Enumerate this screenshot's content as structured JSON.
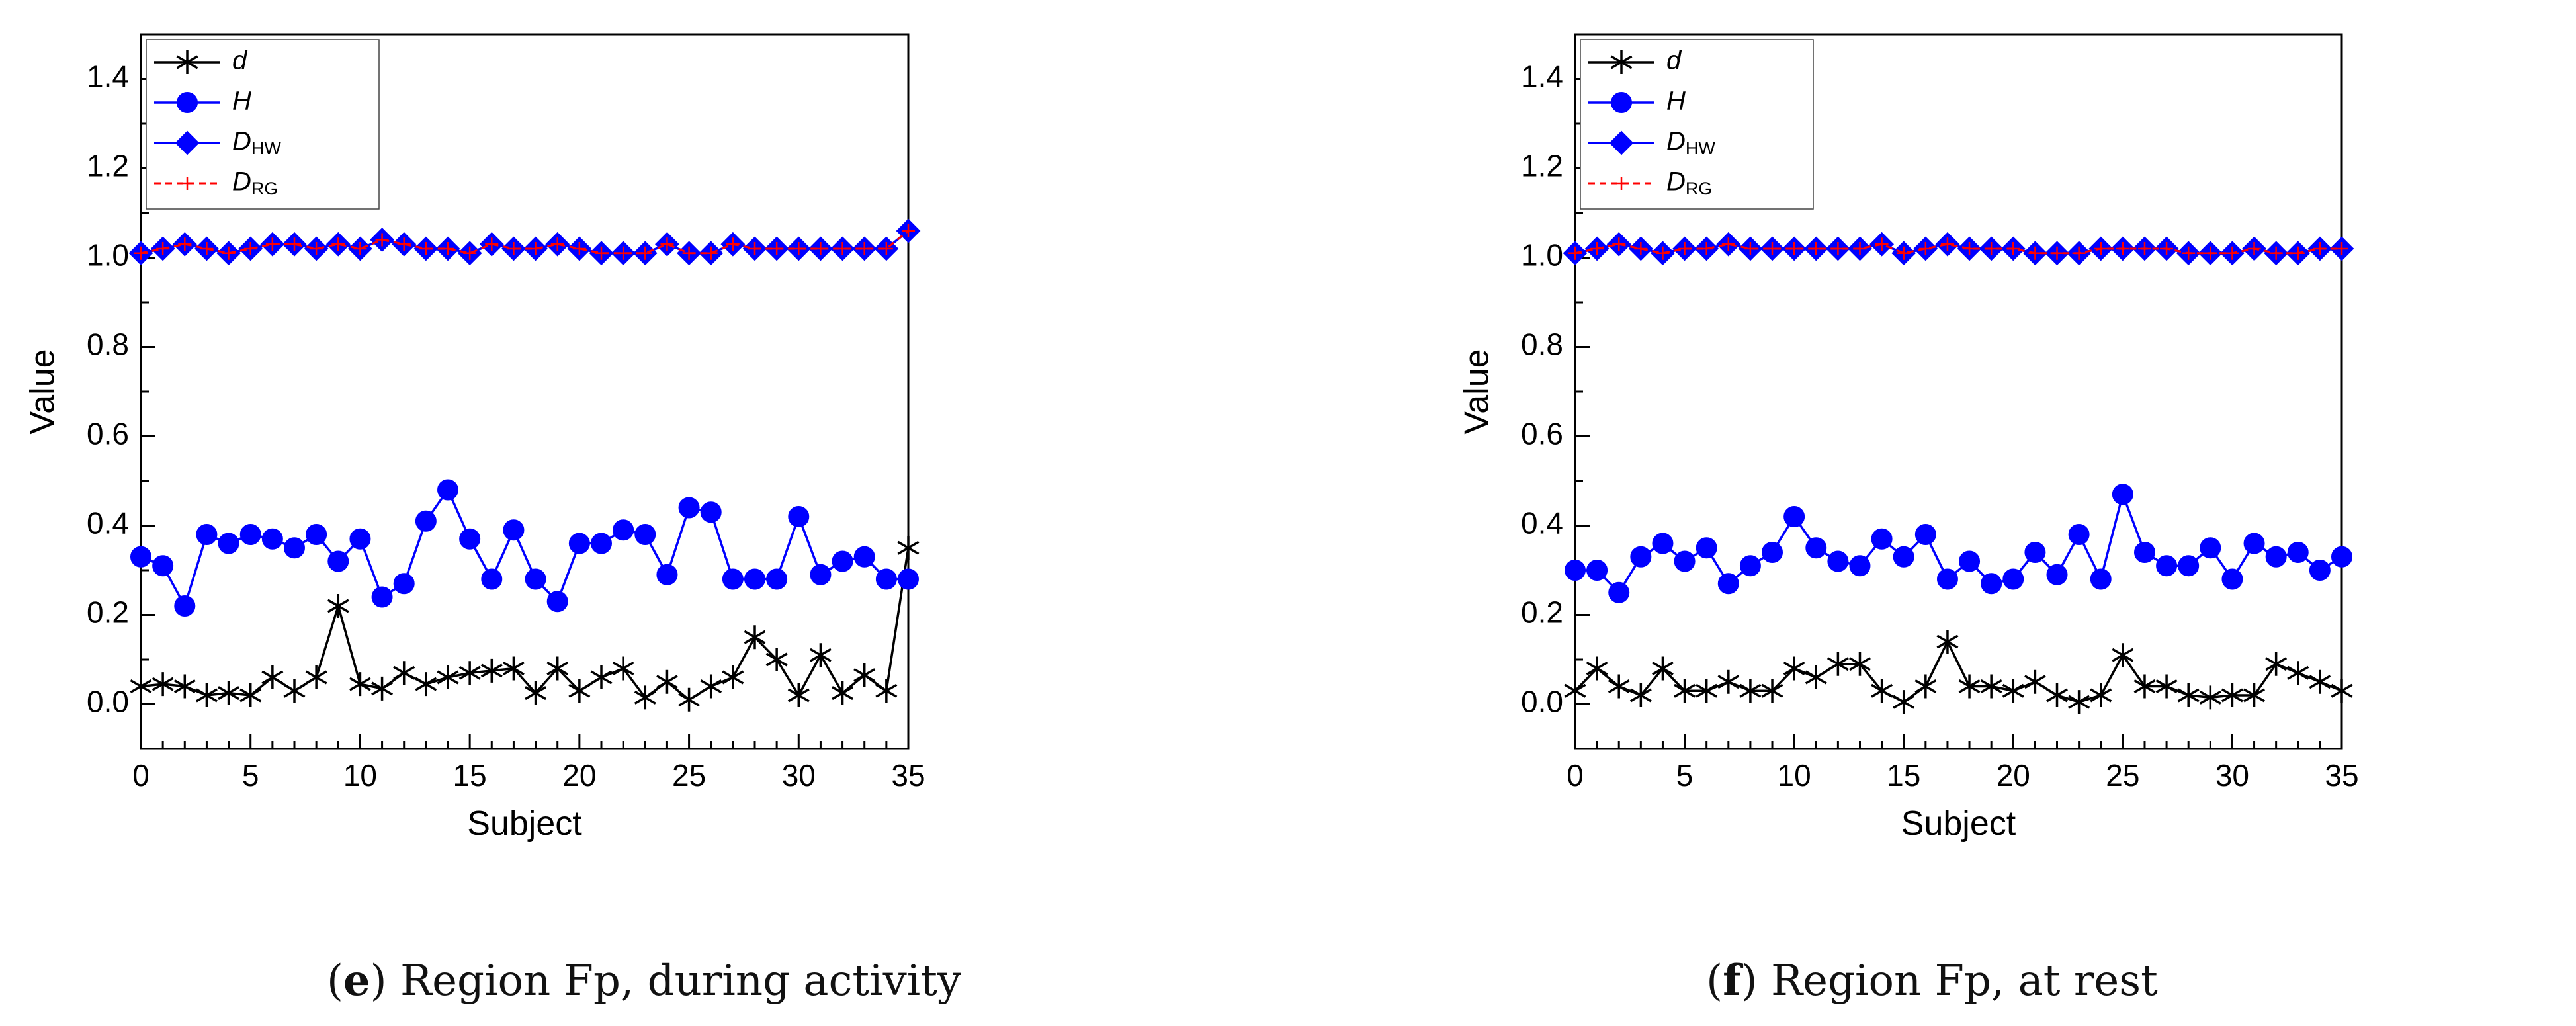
{
  "chart_data": [
    {
      "type": "line",
      "caption_letter": "e",
      "caption_text": " Region Fp, during activity",
      "xlabel": "Subject",
      "ylabel": "Value",
      "xlim": [
        0,
        35
      ],
      "ylim": [
        -0.1,
        1.5
      ],
      "xticks": [
        "0",
        "5",
        "10",
        "15",
        "20",
        "25",
        "30",
        "35"
      ],
      "yticks": [
        "0.0",
        "0.2",
        "0.4",
        "0.6",
        "0.8",
        "1.0",
        "1.2",
        "1.4"
      ],
      "legend": {
        "placement": "top-left"
      },
      "series": [
        {
          "name": "d",
          "symbol": "d",
          "values": [
            0.04,
            0.045,
            0.04,
            0.02,
            0.025,
            0.02,
            0.06,
            0.03,
            0.06,
            0.22,
            0.045,
            0.035,
            0.07,
            0.045,
            0.06,
            0.07,
            0.075,
            0.08,
            0.025,
            0.08,
            0.03,
            0.06,
            0.08,
            0.015,
            0.05,
            0.01,
            0.04,
            0.06,
            0.15,
            0.1,
            0.02,
            0.11,
            0.025,
            0.065,
            0.03,
            0.35
          ]
        },
        {
          "name": "H",
          "symbol": "H",
          "values": [
            0.33,
            0.31,
            0.22,
            0.38,
            0.36,
            0.38,
            0.37,
            0.35,
            0.38,
            0.32,
            0.37,
            0.24,
            0.27,
            0.41,
            0.48,
            0.37,
            0.28,
            0.39,
            0.28,
            0.23,
            0.36,
            0.36,
            0.39,
            0.38,
            0.29,
            0.44,
            0.43,
            0.28,
            0.28,
            0.28,
            0.42,
            0.29,
            0.32,
            0.33,
            0.28,
            0.28
          ]
        },
        {
          "name": "DHW",
          "symbol": "D",
          "subscript": "HW",
          "values": [
            1.01,
            1.02,
            1.03,
            1.02,
            1.01,
            1.02,
            1.03,
            1.03,
            1.02,
            1.03,
            1.02,
            1.04,
            1.03,
            1.02,
            1.02,
            1.01,
            1.03,
            1.02,
            1.02,
            1.03,
            1.02,
            1.01,
            1.01,
            1.01,
            1.03,
            1.01,
            1.01,
            1.03,
            1.02,
            1.02,
            1.02,
            1.02,
            1.02,
            1.02,
            1.02,
            1.06
          ]
        },
        {
          "name": "DRG",
          "symbol": "D",
          "subscript": "RG",
          "values": [
            1.01,
            1.02,
            1.03,
            1.02,
            1.01,
            1.02,
            1.03,
            1.03,
            1.02,
            1.03,
            1.02,
            1.04,
            1.03,
            1.02,
            1.02,
            1.01,
            1.03,
            1.02,
            1.02,
            1.03,
            1.02,
            1.01,
            1.01,
            1.01,
            1.03,
            1.01,
            1.01,
            1.03,
            1.02,
            1.02,
            1.02,
            1.02,
            1.02,
            1.02,
            1.02,
            1.06
          ]
        }
      ]
    },
    {
      "type": "line",
      "caption_letter": "f",
      "caption_text": " Region Fp, at rest",
      "xlabel": "Subject",
      "ylabel": "Value",
      "xlim": [
        0,
        35
      ],
      "ylim": [
        -0.1,
        1.5
      ],
      "xticks": [
        "0",
        "5",
        "10",
        "15",
        "20",
        "25",
        "30",
        "35"
      ],
      "yticks": [
        "0.0",
        "0.2",
        "0.4",
        "0.6",
        "0.8",
        "1.0",
        "1.2",
        "1.4"
      ],
      "legend": {
        "placement": "top-left"
      },
      "series": [
        {
          "name": "d",
          "symbol": "d",
          "values": [
            0.03,
            0.08,
            0.04,
            0.02,
            0.08,
            0.03,
            0.03,
            0.05,
            0.03,
            0.03,
            0.08,
            0.06,
            0.09,
            0.09,
            0.03,
            0.005,
            0.04,
            0.14,
            0.04,
            0.04,
            0.03,
            0.05,
            0.02,
            0.005,
            0.02,
            0.11,
            0.04,
            0.04,
            0.02,
            0.015,
            0.02,
            0.02,
            0.09,
            0.07,
            0.05,
            0.03
          ]
        },
        {
          "name": "H",
          "symbol": "H",
          "values": [
            0.3,
            0.3,
            0.25,
            0.33,
            0.36,
            0.32,
            0.35,
            0.27,
            0.31,
            0.34,
            0.42,
            0.35,
            0.32,
            0.31,
            0.37,
            0.33,
            0.38,
            0.28,
            0.32,
            0.27,
            0.28,
            0.34,
            0.29,
            0.38,
            0.28,
            0.47,
            0.34,
            0.31,
            0.31,
            0.35,
            0.28,
            0.36,
            0.33,
            0.34,
            0.3,
            0.33
          ]
        },
        {
          "name": "DHW",
          "symbol": "D",
          "subscript": "HW",
          "values": [
            1.01,
            1.02,
            1.03,
            1.02,
            1.01,
            1.02,
            1.02,
            1.03,
            1.02,
            1.02,
            1.02,
            1.02,
            1.02,
            1.02,
            1.03,
            1.01,
            1.02,
            1.03,
            1.02,
            1.02,
            1.02,
            1.01,
            1.01,
            1.01,
            1.02,
            1.02,
            1.02,
            1.02,
            1.01,
            1.01,
            1.01,
            1.02,
            1.01,
            1.01,
            1.02,
            1.02
          ]
        },
        {
          "name": "DRG",
          "symbol": "D",
          "subscript": "RG",
          "values": [
            1.01,
            1.02,
            1.03,
            1.02,
            1.01,
            1.02,
            1.02,
            1.03,
            1.02,
            1.02,
            1.02,
            1.02,
            1.02,
            1.02,
            1.03,
            1.01,
            1.02,
            1.03,
            1.02,
            1.02,
            1.02,
            1.01,
            1.01,
            1.01,
            1.02,
            1.02,
            1.02,
            1.02,
            1.01,
            1.01,
            1.01,
            1.02,
            1.01,
            1.01,
            1.02,
            1.02
          ]
        }
      ]
    }
  ],
  "colors": {
    "d": "#000000",
    "H": "#0000ff",
    "DHW": "#0000ff",
    "DRG": "#ff0000",
    "marker_fill": "#0000ff",
    "axis": "#000000"
  }
}
